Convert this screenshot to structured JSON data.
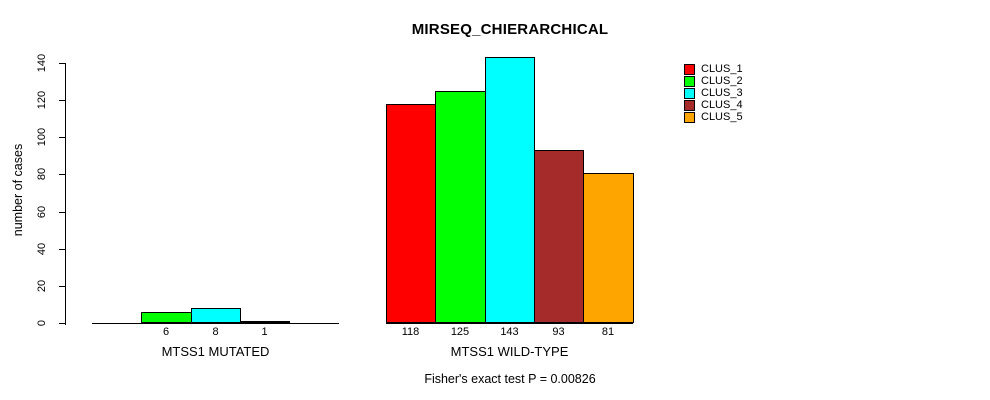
{
  "title": "MIRSEQ_CHIERARCHICAL",
  "footer": "Fisher's exact test P = 0.00826",
  "y_axis": {
    "label": "number of cases"
  },
  "chart_data": {
    "type": "bar",
    "title": "MIRSEQ_CHIERARCHICAL",
    "ylabel": "number of cases",
    "xlabel": "",
    "ylim": [
      0,
      140
    ],
    "yticks": [
      0,
      20,
      40,
      60,
      80,
      100,
      120,
      140
    ],
    "grid": false,
    "legend_position": "top-right",
    "categories": [
      "MTSS1 MUTATED",
      "MTSS1 WILD-TYPE"
    ],
    "series": [
      {
        "name": "CLUS_1",
        "color": "#ff0000",
        "values": [
          0,
          118
        ]
      },
      {
        "name": "CLUS_2",
        "color": "#00ff00",
        "values": [
          6,
          125
        ]
      },
      {
        "name": "CLUS_3",
        "color": "#00ffff",
        "values": [
          8,
          143
        ]
      },
      {
        "name": "CLUS_4",
        "color": "#a52a2a",
        "values": [
          1,
          93
        ]
      },
      {
        "name": "CLUS_5",
        "color": "#ffa500",
        "values": [
          0,
          81
        ]
      }
    ],
    "bar_value_labels": [
      [
        "",
        "6",
        "8",
        "1",
        ""
      ],
      [
        "118",
        "125",
        "143",
        "93",
        "81"
      ]
    ],
    "annotation": "Fisher's exact test P = 0.00826"
  }
}
